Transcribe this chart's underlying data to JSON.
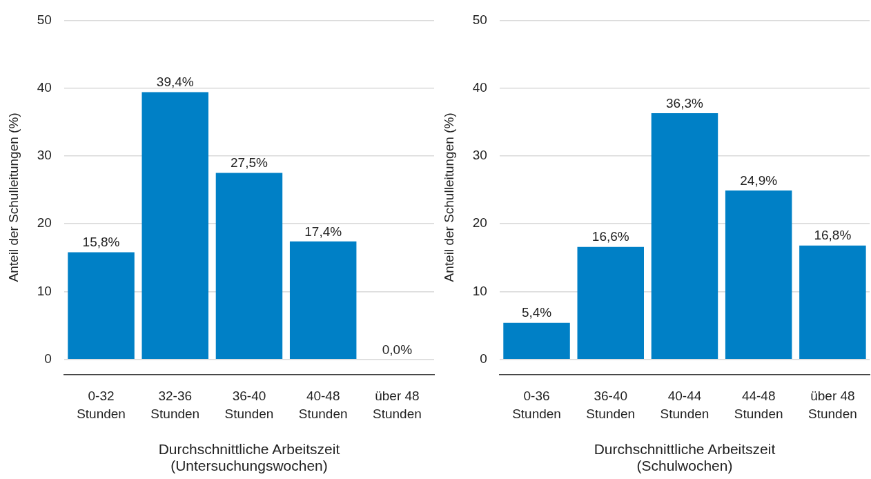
{
  "chart_data": [
    {
      "type": "bar",
      "categories": [
        "0-32 Stunden",
        "32-36 Stunden",
        "36-40 Stunden",
        "40-48 Stunden",
        "über 48 Stunden"
      ],
      "values": [
        15.8,
        39.4,
        27.5,
        17.4,
        0.0
      ],
      "color": "#0080c6",
      "value_labels": [
        "15,8%",
        "39,4%",
        "27,5%",
        "17,4%",
        "0,0%"
      ],
      "xlabel": "Durchschnittliche Arbeitszeit (Untersuchungswochen)",
      "ylabel": "Anteil der Schulleitungen (%)",
      "ylim": [
        -2.2,
        50
      ],
      "yticks": [
        0,
        10,
        20,
        30,
        40,
        50
      ],
      "grid": "y"
    },
    {
      "type": "bar",
      "categories": [
        "0-36 Stunden",
        "36-40 Stunden",
        "40-44 Stunden",
        "44-48 Stunden",
        "über 48 Stunden"
      ],
      "values": [
        5.4,
        16.6,
        36.3,
        24.9,
        16.8
      ],
      "color": "#0080c6",
      "value_labels": [
        "5,4%",
        "16,6%",
        "36,3%",
        "24,9%",
        "16,8%"
      ],
      "xlabel": "Durchschnittliche Arbeitszeit (Schulwochen)",
      "ylabel": "Anteil der Schulleitungen (%)",
      "ylim": [
        -2.2,
        50
      ],
      "yticks": [
        0,
        10,
        20,
        30,
        40,
        50
      ],
      "grid": "y"
    }
  ]
}
